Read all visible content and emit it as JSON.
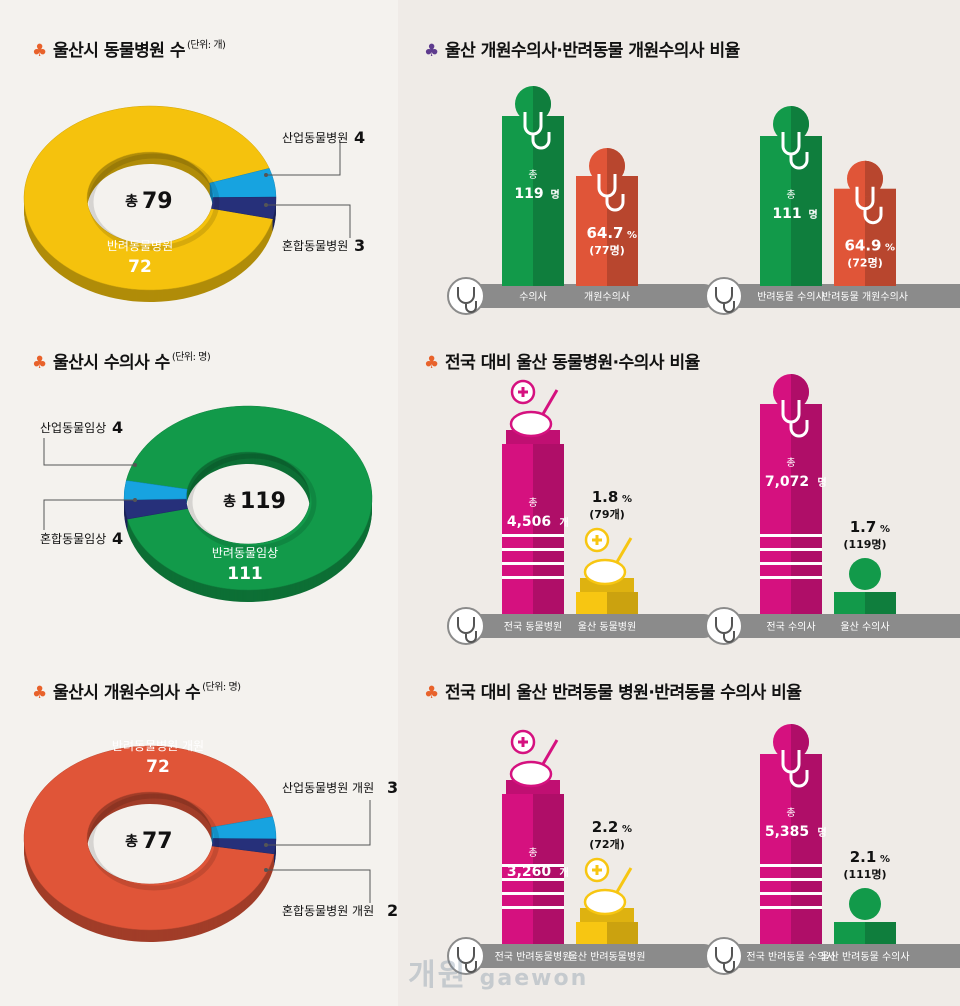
{
  "sections": {
    "s1": {
      "title": "울산시 동물병원 수",
      "unit": "(단위: 개)"
    },
    "s2": {
      "title": "울산시 수의사 수",
      "unit": "(단위: 명)"
    },
    "s3": {
      "title": "울산시 개원수의사 수",
      "unit": "(단위: 명)"
    },
    "s4": {
      "title": "울산 개원수의사·반려동물 개원수의사 비율"
    },
    "s5": {
      "title": "전국 대비 울산 동물병원·수의사 비율"
    },
    "s6": {
      "title": "전국 대비 울산 반려동물 병원·반려동물 수의사 비율"
    }
  },
  "colors": {
    "yellow": "#f5c20d",
    "blue": "#17a3e0",
    "navy": "#26307a",
    "green": "#129a4a",
    "red": "#e05538",
    "magenta": "#d5117f",
    "gold": "#f7c612",
    "purple": "#5e3b8e",
    "orange": "#e8622b",
    "gray": "#8b8b8b"
  },
  "chart_data": [
    {
      "type": "pie",
      "total_label": "총",
      "total": "79",
      "slices": [
        {
          "name": "반려동물병원",
          "value": 72,
          "color": "#f5c20d"
        },
        {
          "name": "산업동물병원",
          "value": 4,
          "color": "#17a3e0"
        },
        {
          "name": "혼합동물병원",
          "value": 3,
          "color": "#26307a"
        }
      ]
    },
    {
      "type": "pie",
      "total_label": "총",
      "total": "119",
      "slices": [
        {
          "name": "반려동물임상",
          "value": 111,
          "color": "#129a4a"
        },
        {
          "name": "산업동물임상",
          "value": 4,
          "color": "#26307a"
        },
        {
          "name": "혼합동물임상",
          "value": 4,
          "color": "#17a3e0"
        }
      ]
    },
    {
      "type": "pie",
      "total_label": "총",
      "total": "77",
      "slices": [
        {
          "name": "반려동물병원 개원",
          "value": 72,
          "color": "#e05538"
        },
        {
          "name": "산업동물병원 개원",
          "value": 3,
          "color": "#17a3e0"
        },
        {
          "name": "혼합동물병원 개원",
          "value": 2,
          "color": "#26307a"
        }
      ]
    },
    {
      "type": "bar",
      "categories": [
        "수의사",
        "개원수의사"
      ],
      "values": [
        119,
        77
      ],
      "labels": [
        {
          "top": "총",
          "main": "119",
          "unit": "명"
        },
        {
          "main": "64.7",
          "unit": "%",
          "sub": "(77명)"
        }
      ]
    },
    {
      "type": "bar",
      "categories": [
        "반려동물 수의사",
        "반려동물 개원수의사"
      ],
      "values": [
        111,
        72
      ],
      "labels": [
        {
          "top": "총",
          "main": "111",
          "unit": "명"
        },
        {
          "main": "64.9",
          "unit": "%",
          "sub": "(72명)"
        }
      ]
    },
    {
      "type": "bar",
      "categories": [
        "전국 동물병원",
        "울산 동물병원"
      ],
      "values": [
        4506,
        79
      ],
      "labels": [
        {
          "top": "총",
          "main": "4,506",
          "unit": "개"
        },
        {
          "main": "1.8",
          "unit": "%",
          "sub": "(79개)"
        }
      ]
    },
    {
      "type": "bar",
      "categories": [
        "전국 수의사",
        "울산 수의사"
      ],
      "values": [
        7072,
        119
      ],
      "labels": [
        {
          "top": "총",
          "main": "7,072",
          "unit": "명"
        },
        {
          "main": "1.7",
          "unit": "%",
          "sub": "(119명)"
        }
      ]
    },
    {
      "type": "bar",
      "categories": [
        "전국 반려동물병원",
        "울산 반려동물병원"
      ],
      "values": [
        3260,
        72
      ],
      "labels": [
        {
          "top": "총",
          "main": "3,260",
          "unit": "개"
        },
        {
          "main": "2.2",
          "unit": "%",
          "sub": "(72개)"
        }
      ]
    },
    {
      "type": "bar",
      "categories": [
        "전국 반려동물 수의사",
        "울산 반려동물 수의사"
      ],
      "values": [
        5385,
        111
      ],
      "labels": [
        {
          "top": "총",
          "main": "5,385",
          "unit": "명"
        },
        {
          "main": "2.1",
          "unit": "%",
          "sub": "(111명)"
        }
      ]
    }
  ],
  "watermark": {
    "text": "개원",
    "sub": "gaewon"
  }
}
